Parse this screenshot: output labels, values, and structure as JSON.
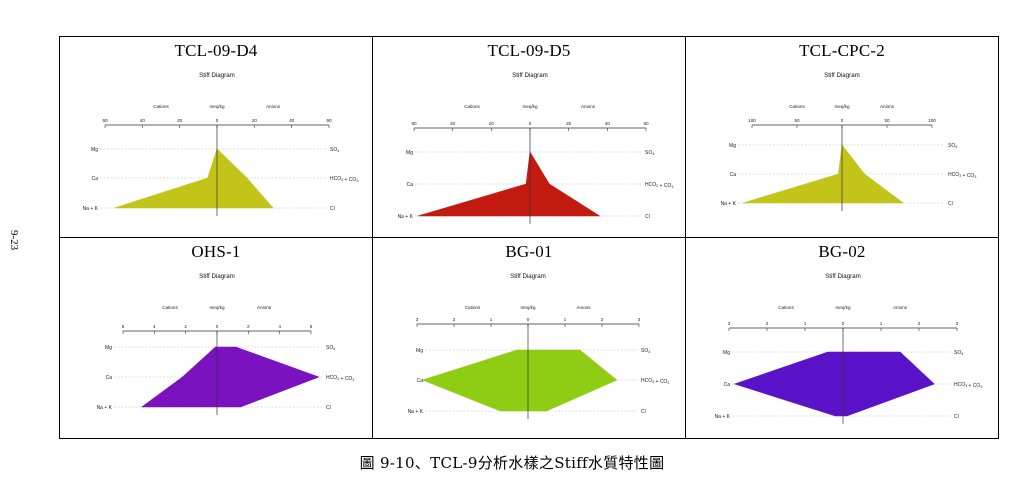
{
  "page_number": "9-23",
  "caption": "圖 9-10、TCL-9分析水樣之Stiff水質特性圖",
  "chart_data": [
    {
      "type": "stiff",
      "title": "TCL-09-D4",
      "subtitle": "Stiff Diagram",
      "unit_label": "meq/kg",
      "side_labels": {
        "left": "Cations",
        "right": "Anions"
      },
      "ticks": [
        "60",
        "40",
        "20",
        "0",
        "20",
        "40",
        "60"
      ],
      "xlim": [
        -60,
        60
      ],
      "cation_labels": [
        "Mg",
        "Ca",
        "Na + K"
      ],
      "anion_labels": [
        "SO4",
        "HCO3 + CO3",
        "Cl"
      ],
      "cations": [
        0,
        5,
        55
      ],
      "anions": [
        0,
        16,
        30
      ],
      "color": "#c3c41a"
    },
    {
      "type": "stiff",
      "title": "TCL-09-D5",
      "subtitle": "Stiff Diagram",
      "unit_label": "meq/kg",
      "side_labels": {
        "left": "Cations",
        "right": "Anions"
      },
      "ticks": [
        "60",
        "40",
        "20",
        "0",
        "20",
        "40",
        "60"
      ],
      "xlim": [
        -60,
        60
      ],
      "cation_labels": [
        "Mg",
        "Ca",
        "Na + K"
      ],
      "anion_labels": [
        "SO4",
        "HCO3 + CO3",
        "Cl"
      ],
      "cations": [
        0,
        2,
        58
      ],
      "anions": [
        0,
        10,
        36
      ],
      "color": "#c21a0e"
    },
    {
      "type": "stiff",
      "title": "TCL-CPC-2",
      "subtitle": "Stiff Diagram",
      "unit_label": "meq/kg",
      "side_labels": {
        "left": "Cations",
        "right": "Anions"
      },
      "ticks": [
        "100",
        "50",
        "0",
        "50",
        "100"
      ],
      "xlim": [
        -100,
        100
      ],
      "cation_labels": [
        "Mg",
        "Ca",
        "Na + K"
      ],
      "anion_labels": [
        "SO4",
        "HCO3 + CO3",
        "Cl"
      ],
      "cations": [
        0,
        4,
        110
      ],
      "anions": [
        0,
        25,
        68
      ],
      "color": "#c3c41a"
    },
    {
      "type": "stiff",
      "title": "OHS-1",
      "subtitle": "Stiff Diagram",
      "unit_label": "meq/kg",
      "side_labels": {
        "left": "Cations",
        "right": "Anions"
      },
      "ticks": [
        "6",
        "4",
        "2",
        "0",
        "2",
        "4",
        "6"
      ],
      "xlim": [
        -6,
        6
      ],
      "cation_labels": [
        "Mg",
        "Ca",
        "Na + K"
      ],
      "anion_labels": [
        "SO4",
        "HCO3 + CO3",
        "Cl"
      ],
      "cations": [
        0.1,
        2.2,
        4.8
      ],
      "anions": [
        1.2,
        6.5,
        1.5
      ],
      "color": "#7a12c0"
    },
    {
      "type": "stiff",
      "title": "BG-01",
      "subtitle": "Stiff Diagram",
      "unit_label": "meq/kg",
      "side_labels": {
        "left": "Cations",
        "right": "Anions"
      },
      "ticks": [
        "3",
        "2",
        "1",
        "0",
        "1",
        "2",
        "3"
      ],
      "xlim": [
        -3,
        3
      ],
      "cation_labels": [
        "Mg",
        "Ca",
        "Na + K"
      ],
      "anion_labels": [
        "SO4",
        "HCO3 + CO3",
        "Cl"
      ],
      "cations": [
        0.3,
        2.85,
        0.75
      ],
      "anions": [
        1.4,
        2.4,
        0.5
      ],
      "color": "#8fcc14"
    },
    {
      "type": "stiff",
      "title": "BG-02",
      "subtitle": "Stiff Diagram",
      "unit_label": "meq/kg",
      "side_labels": {
        "left": "Cations",
        "right": "Anions"
      },
      "ticks": [
        "3",
        "2",
        "1",
        "0",
        "1",
        "2",
        "3"
      ],
      "xlim": [
        -3,
        3
      ],
      "cation_labels": [
        "Mg",
        "Ca",
        "Na + K"
      ],
      "anion_labels": [
        "SO4",
        "HCO3 + CO3",
        "Cl"
      ],
      "cations": [
        0.4,
        2.85,
        0.2
      ],
      "anions": [
        1.5,
        2.4,
        0.1
      ],
      "color": "#5a12c8"
    }
  ]
}
